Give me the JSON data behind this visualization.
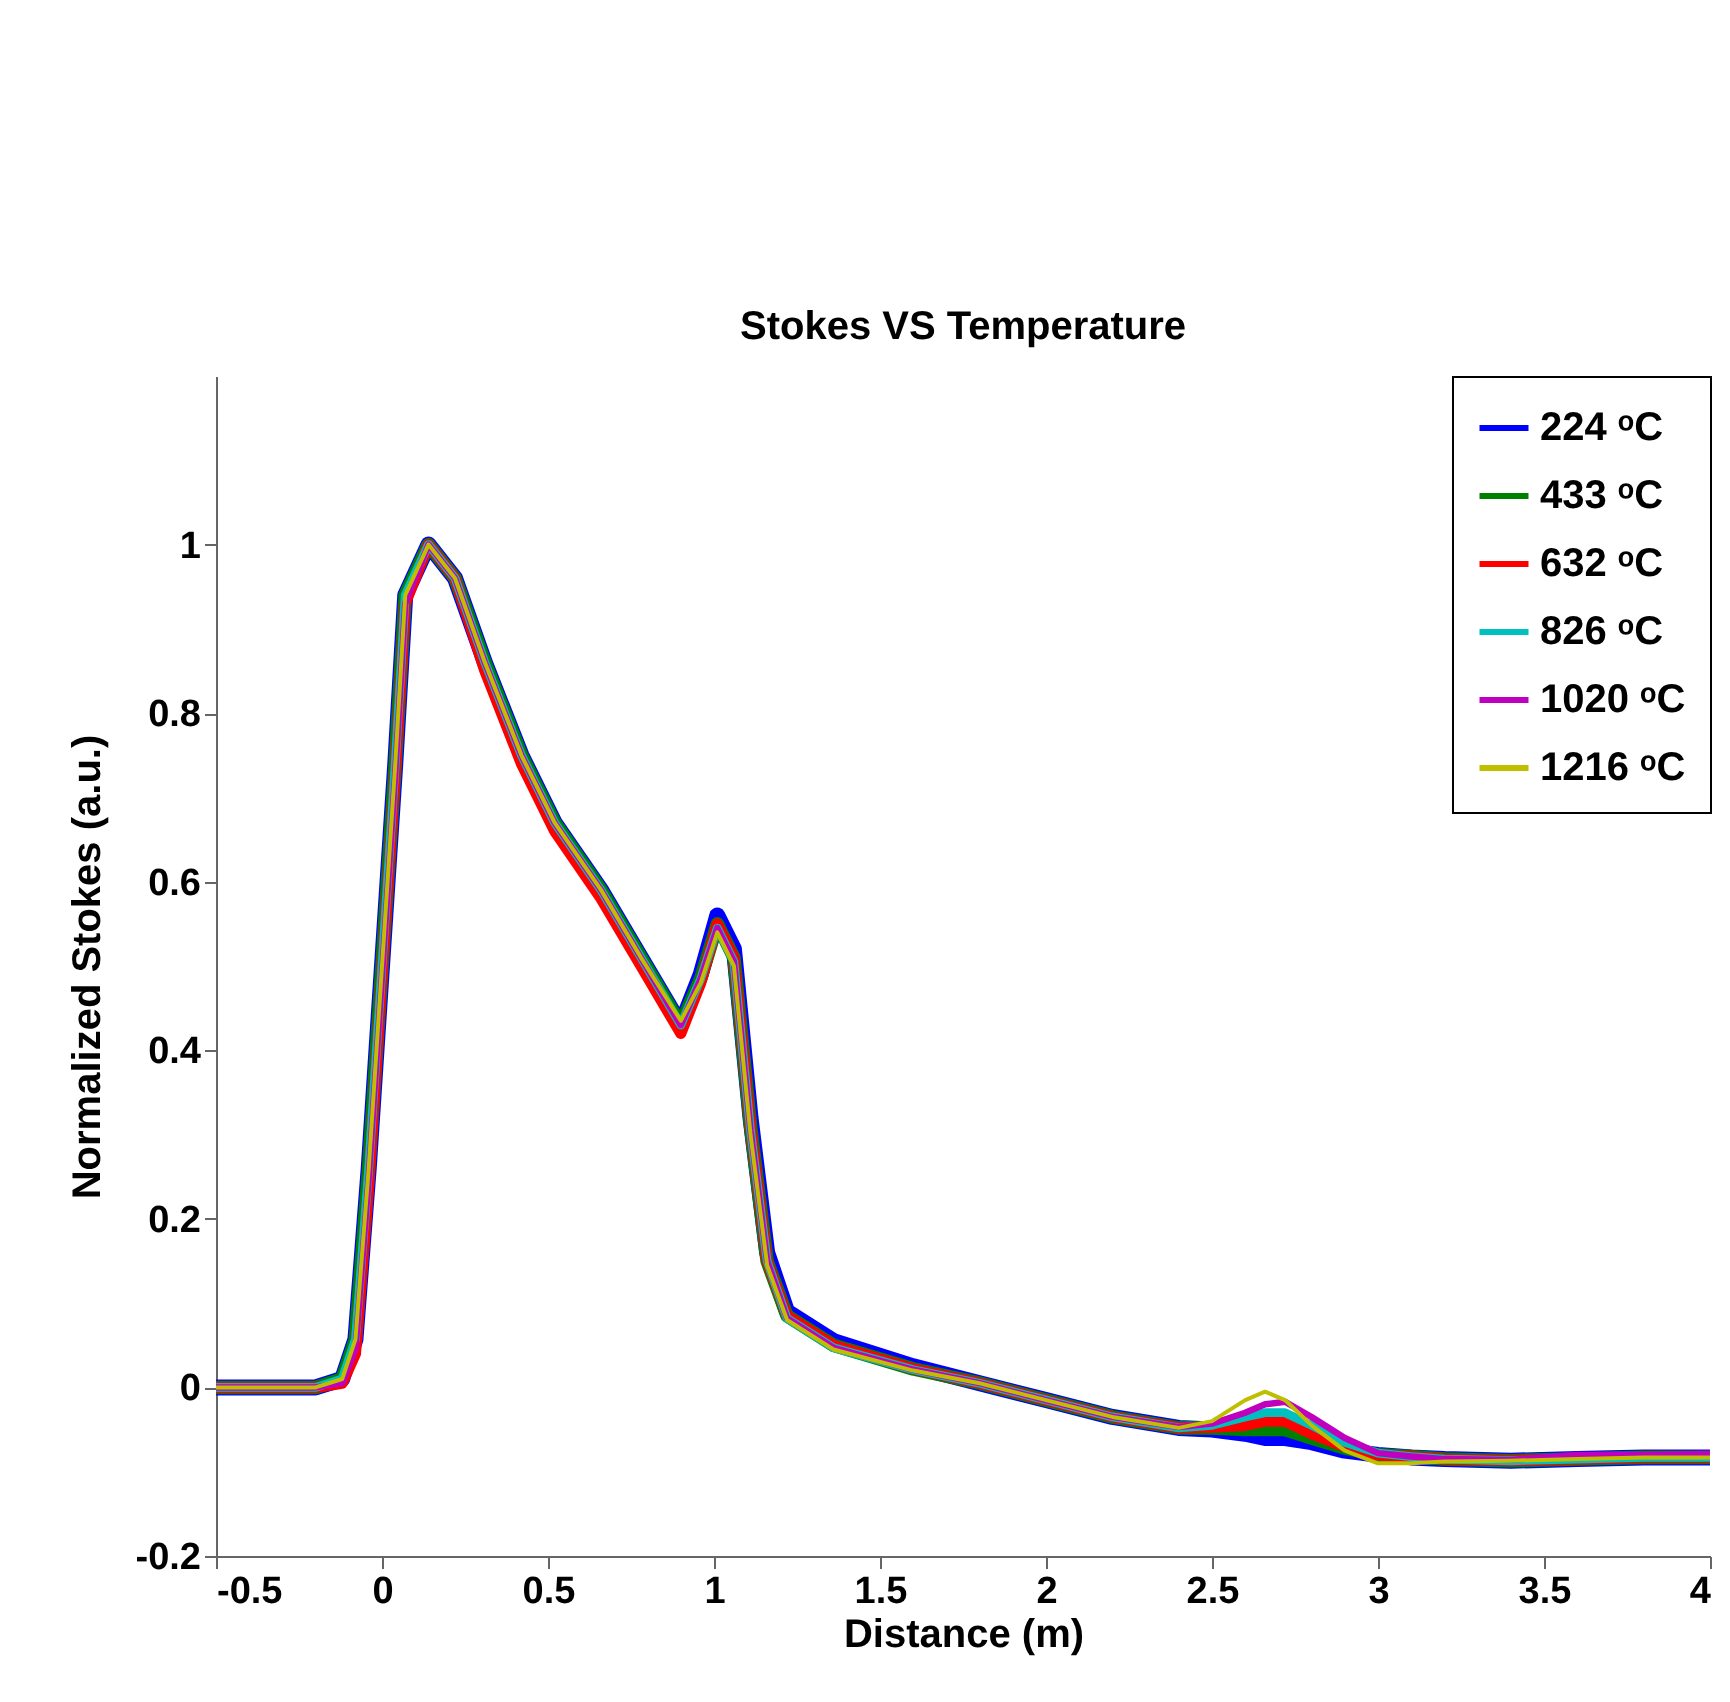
{
  "chart_data": {
    "type": "line",
    "title": "Stokes VS Temperature",
    "xlabel": "Distance (m)",
    "ylabel": "Normalized Stokes (a.u.)",
    "xlim": [
      -0.5,
      4
    ],
    "xticks": [
      -0.5,
      0,
      0.5,
      1,
      1.5,
      2,
      2.5,
      3,
      3.5,
      4
    ],
    "ylim": [
      -0.2,
      1.2
    ],
    "yticks": [
      -0.2,
      0,
      0.2,
      0.4,
      0.6,
      0.8,
      1
    ],
    "legend": "top right",
    "grid": false,
    "marker": "none",
    "line_style": "solid",
    "x": [
      -0.5,
      -0.2,
      -0.12,
      -0.08,
      -0.04,
      0,
      0.04,
      0.07,
      0.14,
      0.22,
      0.31,
      0.42,
      0.52,
      0.66,
      0.78,
      0.9,
      0.96,
      1.01,
      1.06,
      1.11,
      1.16,
      1.22,
      1.36,
      1.6,
      1.8,
      2.0,
      2.2,
      2.4,
      2.5,
      2.6,
      2.66,
      2.72,
      2.8,
      2.9,
      3.0,
      3.1,
      3.2,
      3.4,
      3.6,
      3.8,
      4.0
    ],
    "series": [
      {
        "name": "224 ᵒC",
        "color": "#0000ff",
        "values": [
          0,
          0,
          0.01,
          0.057,
          0.26,
          0.5,
          0.74,
          0.94,
          1.0,
          0.96,
          0.86,
          0.75,
          0.67,
          0.59,
          0.51,
          0.43,
          0.49,
          0.56,
          0.52,
          0.32,
          0.16,
          0.09,
          0.055,
          0.025,
          0.005,
          -0.015,
          -0.035,
          -0.048,
          -0.05,
          -0.055,
          -0.06,
          -0.06,
          -0.065,
          -0.075,
          -0.08,
          -0.083,
          -0.085,
          -0.087,
          -0.085,
          -0.083,
          -0.083
        ]
      },
      {
        "name": "433 ᵒC",
        "color": "#008000",
        "values": [
          0,
          0,
          0.01,
          0.057,
          0.26,
          0.5,
          0.74,
          0.94,
          1.0,
          0.96,
          0.86,
          0.75,
          0.67,
          0.59,
          0.51,
          0.43,
          0.485,
          0.55,
          0.51,
          0.31,
          0.15,
          0.085,
          0.05,
          0.022,
          0.005,
          -0.015,
          -0.035,
          -0.048,
          -0.048,
          -0.05,
          -0.05,
          -0.05,
          -0.06,
          -0.072,
          -0.08,
          -0.082,
          -0.085,
          -0.087,
          -0.085,
          -0.083,
          -0.083
        ]
      },
      {
        "name": "632 ᵒC",
        "color": "#ff0000",
        "values": [
          0,
          0,
          0.005,
          0.04,
          0.24,
          0.49,
          0.73,
          0.93,
          1.0,
          0.96,
          0.85,
          0.74,
          0.66,
          0.58,
          0.5,
          0.42,
          0.48,
          0.55,
          0.51,
          0.31,
          0.15,
          0.085,
          0.05,
          0.022,
          0.005,
          -0.015,
          -0.035,
          -0.048,
          -0.047,
          -0.045,
          -0.04,
          -0.04,
          -0.055,
          -0.07,
          -0.08,
          -0.082,
          -0.085,
          -0.087,
          -0.085,
          -0.083,
          -0.083
        ]
      },
      {
        "name": "826 ᵒC",
        "color": "#00bfbf",
        "values": [
          0,
          0,
          0.01,
          0.057,
          0.26,
          0.5,
          0.74,
          0.94,
          1.0,
          0.96,
          0.86,
          0.75,
          0.67,
          0.59,
          0.51,
          0.43,
          0.485,
          0.545,
          0.505,
          0.305,
          0.15,
          0.082,
          0.047,
          0.021,
          0.005,
          -0.015,
          -0.035,
          -0.048,
          -0.045,
          -0.035,
          -0.03,
          -0.03,
          -0.045,
          -0.065,
          -0.078,
          -0.082,
          -0.085,
          -0.087,
          -0.085,
          -0.083,
          -0.083
        ]
      },
      {
        "name": "1020 ᵒC",
        "color": "#bf00bf",
        "values": [
          0,
          0,
          0.005,
          0.045,
          0.25,
          0.49,
          0.73,
          0.93,
          1.0,
          0.96,
          0.86,
          0.75,
          0.67,
          0.59,
          0.51,
          0.43,
          0.485,
          0.545,
          0.505,
          0.305,
          0.15,
          0.082,
          0.047,
          0.021,
          0.005,
          -0.015,
          -0.035,
          -0.047,
          -0.043,
          -0.03,
          -0.02,
          -0.017,
          -0.035,
          -0.06,
          -0.078,
          -0.082,
          -0.085,
          -0.086,
          -0.08,
          -0.08,
          -0.079
        ]
      },
      {
        "name": "1216 ᵒC",
        "color": "#bfbf00",
        "values": [
          0,
          0,
          0.01,
          0.057,
          0.26,
          0.5,
          0.74,
          0.94,
          1.0,
          0.96,
          0.86,
          0.75,
          0.67,
          0.59,
          0.51,
          0.435,
          0.48,
          0.54,
          0.5,
          0.3,
          0.145,
          0.08,
          0.045,
          0.02,
          0.005,
          -0.015,
          -0.035,
          -0.048,
          -0.04,
          -0.015,
          -0.005,
          -0.015,
          -0.045,
          -0.075,
          -0.09,
          -0.09,
          -0.088,
          -0.087,
          -0.085,
          -0.083,
          -0.083
        ]
      }
    ]
  }
}
